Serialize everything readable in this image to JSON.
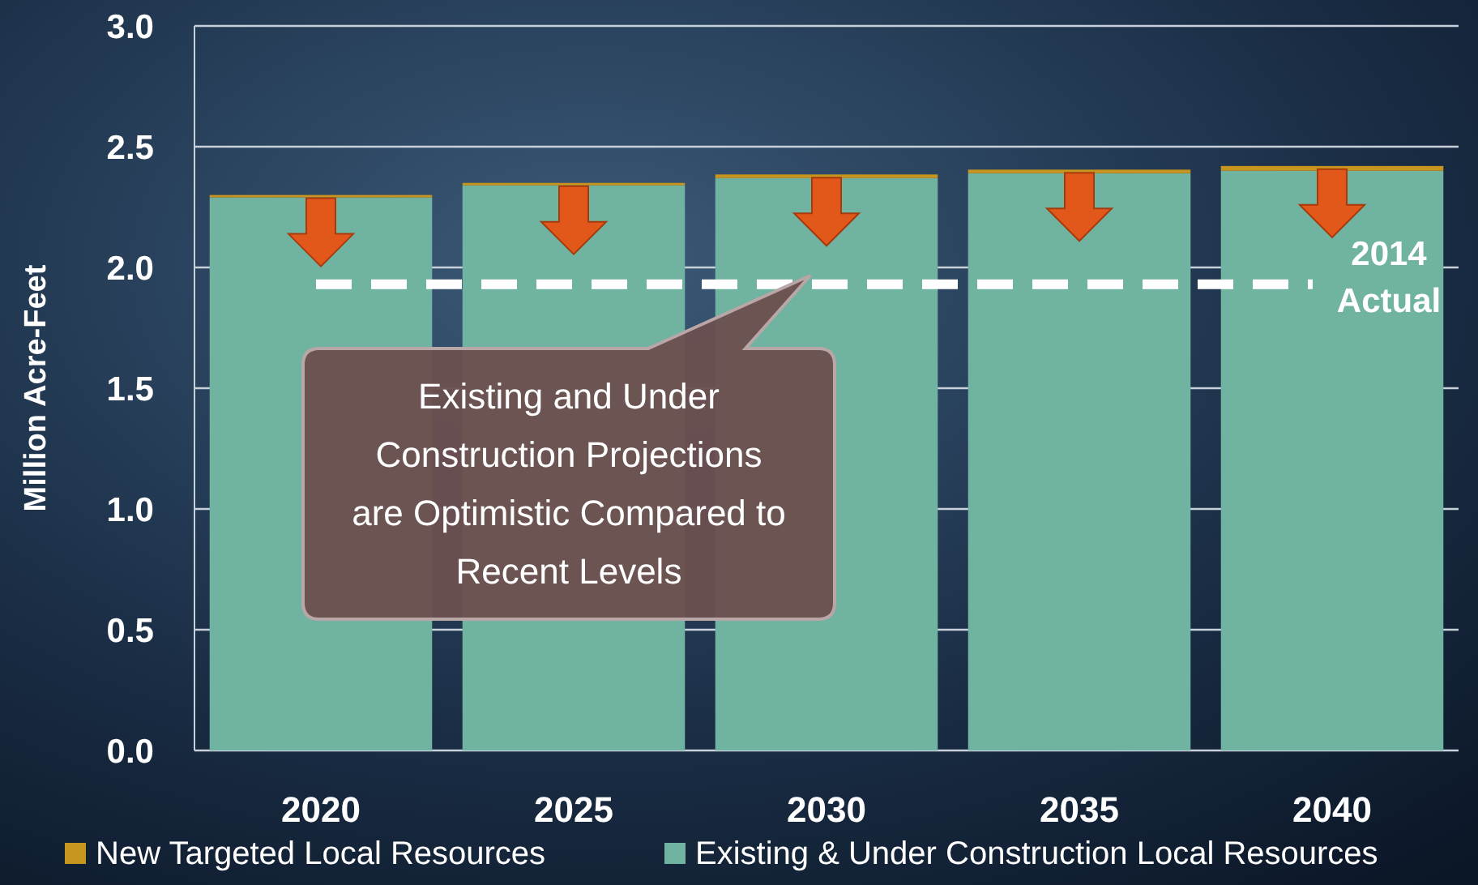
{
  "chart_data": {
    "type": "bar",
    "stacked": true,
    "categories": [
      "2020",
      "2025",
      "2030",
      "2035",
      "2040"
    ],
    "series": [
      {
        "name": "Existing & Under Construction Local Resources",
        "color": "#6fb3a0",
        "values": [
          2.29,
          2.34,
          2.37,
          2.39,
          2.4
        ]
      },
      {
        "name": "New Targeted Local Resources",
        "color": "#c8961e",
        "values": [
          0.01,
          0.01,
          0.015,
          0.015,
          0.02
        ]
      }
    ],
    "ylabel": "Million Acre-Feet",
    "ylim": [
      0,
      3
    ],
    "yticks": [
      {
        "value": 0,
        "label": "0.0"
      },
      0.5,
      {
        "value": 1,
        "label": "1.0"
      },
      1.5,
      {
        "value": 2,
        "label": "2.0"
      },
      2.5,
      {
        "value": 3,
        "label": "3.0"
      }
    ],
    "grid": "y",
    "legend": "bottom",
    "ref_lines": [
      {
        "axis": "y",
        "value": 1.93,
        "label": "2014 Actual",
        "color": "#ffffff",
        "line_style": "dashed"
      }
    ],
    "annotations": [
      "Existing and Under Construction Projections are Optimistic Compared to Recent Levels"
    ]
  }
}
